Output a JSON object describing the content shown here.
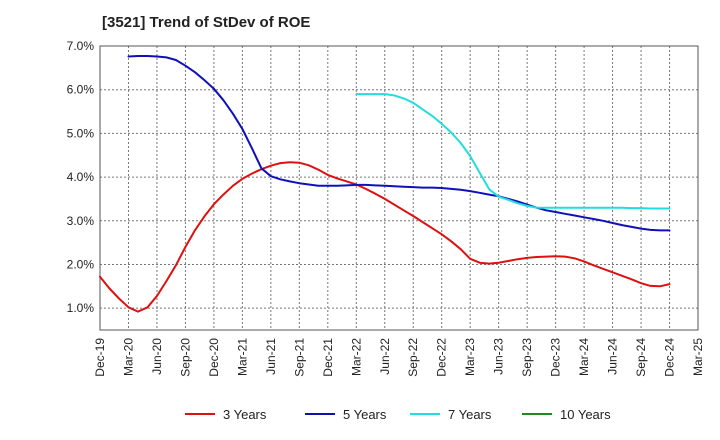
{
  "chart_data": {
    "type": "line",
    "title": "[3521]  Trend of StDev of ROE",
    "xlabel": "",
    "ylabel": "",
    "x_ticks": [
      "Dec-19",
      "Mar-20",
      "Jun-20",
      "Sep-20",
      "Dec-20",
      "Mar-21",
      "Jun-21",
      "Sep-21",
      "Dec-21",
      "Mar-22",
      "Jun-22",
      "Sep-22",
      "Dec-22",
      "Mar-23",
      "Jun-23",
      "Sep-23",
      "Dec-23",
      "Mar-24",
      "Jun-24",
      "Sep-24",
      "Dec-24",
      "Mar-25"
    ],
    "y_ticks": [
      "1.0%",
      "2.0%",
      "3.0%",
      "4.0%",
      "5.0%",
      "6.0%",
      "7.0%"
    ],
    "ylim": [
      0.5,
      7.0
    ],
    "grid": true,
    "legend_position": "bottom",
    "series": [
      {
        "name": "3 Years",
        "color": "#dd1111",
        "points": [
          [
            "Dec-19",
            1.72
          ],
          [
            "Jan-20",
            1.45
          ],
          [
            "Feb-20",
            1.22
          ],
          [
            "Mar-20",
            1.02
          ],
          [
            "Apr-20",
            0.92
          ],
          [
            "May-20",
            1.02
          ],
          [
            "Jun-20",
            1.28
          ],
          [
            "Jul-20",
            1.62
          ],
          [
            "Aug-20",
            1.98
          ],
          [
            "Sep-20",
            2.4
          ],
          [
            "Oct-20",
            2.78
          ],
          [
            "Nov-20",
            3.1
          ],
          [
            "Dec-20",
            3.38
          ],
          [
            "Jan-21",
            3.6
          ],
          [
            "Feb-21",
            3.8
          ],
          [
            "Mar-21",
            3.96
          ],
          [
            "Apr-21",
            4.08
          ],
          [
            "May-21",
            4.18
          ],
          [
            "Jun-21",
            4.26
          ],
          [
            "Jul-21",
            4.32
          ],
          [
            "Aug-21",
            4.34
          ],
          [
            "Sep-21",
            4.33
          ],
          [
            "Oct-21",
            4.27
          ],
          [
            "Nov-21",
            4.17
          ],
          [
            "Dec-21",
            4.05
          ],
          [
            "Jan-22",
            3.97
          ],
          [
            "Feb-22",
            3.9
          ],
          [
            "Mar-22",
            3.83
          ],
          [
            "Apr-22",
            3.73
          ],
          [
            "May-22",
            3.62
          ],
          [
            "Jun-22",
            3.5
          ],
          [
            "Jul-22",
            3.37
          ],
          [
            "Aug-22",
            3.24
          ],
          [
            "Sep-22",
            3.11
          ],
          [
            "Oct-22",
            2.97
          ],
          [
            "Nov-22",
            2.83
          ],
          [
            "Dec-22",
            2.69
          ],
          [
            "Jan-23",
            2.53
          ],
          [
            "Feb-23",
            2.35
          ],
          [
            "Mar-23",
            2.13
          ],
          [
            "Apr-23",
            2.04
          ],
          [
            "May-23",
            2.02
          ],
          [
            "Jun-23",
            2.04
          ],
          [
            "Jul-23",
            2.08
          ],
          [
            "Aug-23",
            2.12
          ],
          [
            "Sep-23",
            2.15
          ],
          [
            "Oct-23",
            2.17
          ],
          [
            "Nov-23",
            2.18
          ],
          [
            "Dec-23",
            2.19
          ],
          [
            "Jan-24",
            2.18
          ],
          [
            "Feb-24",
            2.14
          ],
          [
            "Mar-24",
            2.07
          ],
          [
            "Apr-24",
            1.98
          ],
          [
            "May-24",
            1.9
          ],
          [
            "Jun-24",
            1.82
          ],
          [
            "Jul-24",
            1.74
          ],
          [
            "Aug-24",
            1.66
          ],
          [
            "Sep-24",
            1.57
          ],
          [
            "Oct-24",
            1.51
          ],
          [
            "Nov-24",
            1.5
          ],
          [
            "Dec-24",
            1.55
          ]
        ]
      },
      {
        "name": "5 Years",
        "color": "#1010bb",
        "points": [
          [
            "Mar-20",
            6.76
          ],
          [
            "Apr-20",
            6.77
          ],
          [
            "May-20",
            6.77
          ],
          [
            "Jun-20",
            6.76
          ],
          [
            "Jul-20",
            6.74
          ],
          [
            "Aug-20",
            6.68
          ],
          [
            "Sep-20",
            6.55
          ],
          [
            "Oct-20",
            6.4
          ],
          [
            "Nov-20",
            6.22
          ],
          [
            "Dec-20",
            6.02
          ],
          [
            "Jan-21",
            5.76
          ],
          [
            "Feb-21",
            5.45
          ],
          [
            "Mar-21",
            5.1
          ],
          [
            "Apr-21",
            4.66
          ],
          [
            "May-21",
            4.2
          ],
          [
            "Jun-21",
            4.02
          ],
          [
            "Jul-21",
            3.95
          ],
          [
            "Aug-21",
            3.9
          ],
          [
            "Sep-21",
            3.86
          ],
          [
            "Oct-21",
            3.83
          ],
          [
            "Nov-21",
            3.8
          ],
          [
            "Dec-21",
            3.8
          ],
          [
            "Jan-22",
            3.8
          ],
          [
            "Feb-22",
            3.81
          ],
          [
            "Mar-22",
            3.82
          ],
          [
            "Apr-22",
            3.82
          ],
          [
            "May-22",
            3.81
          ],
          [
            "Jun-22",
            3.8
          ],
          [
            "Jul-22",
            3.79
          ],
          [
            "Aug-22",
            3.78
          ],
          [
            "Sep-22",
            3.77
          ],
          [
            "Oct-22",
            3.76
          ],
          [
            "Nov-22",
            3.76
          ],
          [
            "Dec-22",
            3.75
          ],
          [
            "Jan-23",
            3.73
          ],
          [
            "Feb-23",
            3.71
          ],
          [
            "Mar-23",
            3.68
          ],
          [
            "Apr-23",
            3.64
          ],
          [
            "May-23",
            3.6
          ],
          [
            "Jun-23",
            3.56
          ],
          [
            "Jul-23",
            3.5
          ],
          [
            "Aug-23",
            3.44
          ],
          [
            "Sep-23",
            3.37
          ],
          [
            "Oct-23",
            3.3
          ],
          [
            "Nov-23",
            3.24
          ],
          [
            "Dec-23",
            3.2
          ],
          [
            "Jan-24",
            3.16
          ],
          [
            "Feb-24",
            3.12
          ],
          [
            "Mar-24",
            3.08
          ],
          [
            "Apr-24",
            3.04
          ],
          [
            "May-24",
            3.0
          ],
          [
            "Jun-24",
            2.95
          ],
          [
            "Jul-24",
            2.9
          ],
          [
            "Aug-24",
            2.86
          ],
          [
            "Sep-24",
            2.82
          ],
          [
            "Oct-24",
            2.79
          ],
          [
            "Nov-24",
            2.78
          ],
          [
            "Dec-24",
            2.78
          ]
        ]
      },
      {
        "name": "7 Years",
        "color": "#22dddd",
        "points": [
          [
            "Mar-22",
            5.9
          ],
          [
            "Apr-22",
            5.9
          ],
          [
            "May-22",
            5.9
          ],
          [
            "Jun-22",
            5.9
          ],
          [
            "Jul-22",
            5.87
          ],
          [
            "Aug-22",
            5.8
          ],
          [
            "Sep-22",
            5.7
          ],
          [
            "Oct-22",
            5.55
          ],
          [
            "Nov-22",
            5.4
          ],
          [
            "Dec-22",
            5.22
          ],
          [
            "Jan-23",
            5.02
          ],
          [
            "Feb-23",
            4.78
          ],
          [
            "Mar-23",
            4.48
          ],
          [
            "Apr-23",
            4.1
          ],
          [
            "May-23",
            3.72
          ],
          [
            "Jun-23",
            3.55
          ],
          [
            "Jul-23",
            3.48
          ],
          [
            "Aug-23",
            3.4
          ],
          [
            "Sep-23",
            3.34
          ],
          [
            "Oct-23",
            3.3
          ],
          [
            "Nov-23",
            3.3
          ],
          [
            "Dec-23",
            3.3
          ],
          [
            "Jan-24",
            3.3
          ],
          [
            "Feb-24",
            3.3
          ],
          [
            "Mar-24",
            3.3
          ],
          [
            "Apr-24",
            3.3
          ],
          [
            "May-24",
            3.3
          ],
          [
            "Jun-24",
            3.3
          ],
          [
            "Jul-24",
            3.3
          ],
          [
            "Aug-24",
            3.29
          ],
          [
            "Sep-24",
            3.29
          ],
          [
            "Oct-24",
            3.28
          ],
          [
            "Nov-24",
            3.28
          ],
          [
            "Dec-24",
            3.28
          ]
        ]
      },
      {
        "name": "10 Years",
        "color": "#228822",
        "points": []
      }
    ]
  }
}
